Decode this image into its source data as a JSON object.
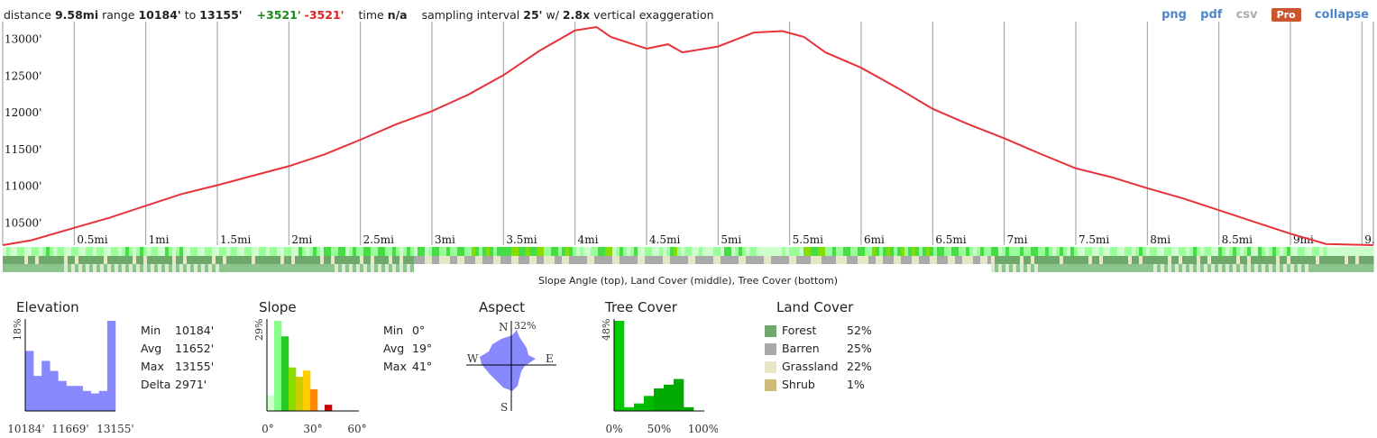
{
  "header": {
    "distance_label": "distance",
    "distance_value": "9.58mi",
    "range_label": "range",
    "range_low": "10184'",
    "range_to": "to",
    "range_high": "13155'",
    "gain": "+3521'",
    "loss": "-3521'",
    "time_label": "time",
    "time_value": "n/a",
    "sampling_label": "sampling interval",
    "sampling_value": "25'",
    "sampling_w": "w/",
    "exaggeration_value": "2.8x",
    "exaggeration_label": "vertical exaggeration"
  },
  "links": {
    "png": "png",
    "pdf": "pdf",
    "csv": "csv",
    "pro": "Pro",
    "collapse": "collapse"
  },
  "colors": {
    "profile_line": "#e8323a",
    "grid": "#9a9a9a",
    "hist_fill": "#8888ff",
    "forest": "#6ea86a",
    "barren": "#a9a9a9",
    "grassland": "#e6e6c8",
    "shrub": "#cdbb7a"
  },
  "chart_data": [
    {
      "type": "line",
      "xlabel": "",
      "ylabel": "",
      "xlim": [
        0,
        9.58
      ],
      "ylim": [
        10184,
        13155
      ],
      "x_ticks": [
        "0.5mi",
        "1mi",
        "1.5mi",
        "2mi",
        "2.5mi",
        "3mi",
        "3.5mi",
        "4mi",
        "4.5mi",
        "5mi",
        "5.5mi",
        "6mi",
        "6.5mi",
        "7mi",
        "7.5mi",
        "8mi",
        "8.5mi",
        "9mi",
        "9."
      ],
      "y_ticks": [
        "10500'",
        "11000'",
        "11500'",
        "12000'",
        "12500'",
        "13000'"
      ],
      "series": [
        {
          "x": [
            0,
            0.2,
            0.5,
            0.75,
            1,
            1.25,
            1.5,
            1.75,
            2,
            2.25,
            2.5,
            2.75,
            3,
            3.25,
            3.5,
            3.75,
            4,
            4.15,
            4.25,
            4.5,
            4.65,
            4.75,
            5,
            5.25,
            5.45,
            5.6,
            5.75,
            6,
            6.25,
            6.5,
            6.75,
            7,
            7.25,
            7.5,
            7.75,
            8,
            8.25,
            8.5,
            8.75,
            9,
            9.25,
            9.58
          ],
          "y": [
            10184,
            10250,
            10420,
            10560,
            10720,
            10880,
            11000,
            11130,
            11260,
            11420,
            11620,
            11830,
            12010,
            12230,
            12500,
            12830,
            13110,
            13155,
            13020,
            12860,
            12920,
            12810,
            12890,
            13080,
            13100,
            13020,
            12810,
            12600,
            12330,
            12040,
            11830,
            11640,
            11430,
            11230,
            11110,
            10960,
            10820,
            10660,
            10500,
            10340,
            10200,
            10184
          ]
        }
      ],
      "bottom_caption": "Slope Angle (top), Land Cover (middle), Tree Cover (bottom)"
    },
    {
      "type": "bar",
      "title": "Elevation",
      "ylabel": "18%",
      "x_tick_labels": [
        "10184'",
        "11669'",
        "13155'"
      ],
      "values": [
        12,
        7,
        10,
        8,
        6,
        5,
        5,
        4,
        3.5,
        4,
        18
      ],
      "stats": [
        {
          "label": "Min",
          "value": "10184'"
        },
        {
          "label": "Avg",
          "value": "11652'"
        },
        {
          "label": "Max",
          "value": "13155'"
        },
        {
          "label": "Delta",
          "value": "2971'"
        }
      ]
    },
    {
      "type": "bar",
      "title": "Slope",
      "ylabel": "29%",
      "x_tick_labels": [
        "0°",
        "30°",
        "60°"
      ],
      "categories": [
        "0-5",
        "5-10",
        "10-15",
        "15-20",
        "20-25",
        "25-30",
        "30-35",
        "35-40",
        "40-45"
      ],
      "values": [
        5,
        29,
        24,
        14,
        11,
        13,
        7,
        0,
        2
      ],
      "colors": [
        "#ccffcc",
        "#88ff88",
        "#22cc22",
        "#88dd00",
        "#cccc00",
        "#ffcc00",
        "#ff8800",
        "#ff5500",
        "#cc0000"
      ],
      "stats": [
        {
          "label": "Min",
          "value": "0°"
        },
        {
          "label": "Avg",
          "value": "19°"
        },
        {
          "label": "Max",
          "value": "41°"
        }
      ]
    },
    {
      "type": "rose",
      "title": "Aspect",
      "max_label": "32%",
      "directions": [
        "N",
        "E",
        "S",
        "W"
      ]
    },
    {
      "type": "bar",
      "title": "Tree Cover",
      "ylabel": "48%",
      "x_tick_labels": [
        "0%",
        "50%",
        "100%"
      ],
      "values": [
        48,
        2,
        4,
        8,
        12,
        14,
        17,
        2
      ],
      "colors": [
        "#00cc00",
        "#00cc00",
        "#00bb00",
        "#00bb00",
        "#00aa00",
        "#00aa00",
        "#00aa00",
        "#00aa00"
      ]
    },
    {
      "type": "table",
      "title": "Land Cover",
      "rows": [
        {
          "name": "Forest",
          "value": "52%",
          "color": "#6ea86a"
        },
        {
          "name": "Barren",
          "value": "25%",
          "color": "#a9a9a9"
        },
        {
          "name": "Grassland",
          "value": "22%",
          "color": "#e6e6c8"
        },
        {
          "name": "Shrub",
          "value": "1%",
          "color": "#cdbb7a"
        }
      ]
    }
  ]
}
